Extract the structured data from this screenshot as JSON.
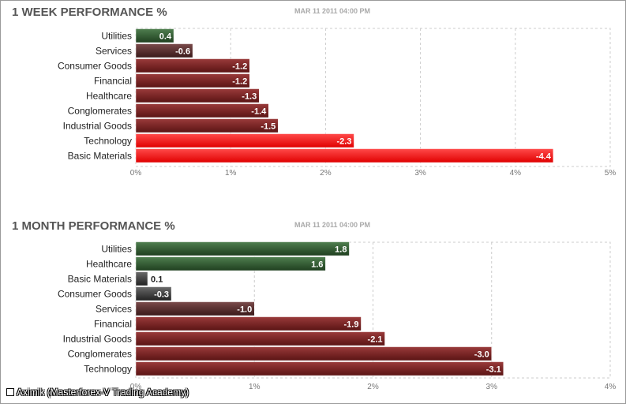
{
  "watermark": "Aximik (Masterforex-V Trading Academy)",
  "chart_data": [
    {
      "type": "bar",
      "orientation": "horizontal",
      "title": "1 WEEK PERFORMANCE %",
      "timestamp": "MAR 11 2011 04:00 PM",
      "categories": [
        "Utilities",
        "Services",
        "Consumer Goods",
        "Financial",
        "Healthcare",
        "Conglomerates",
        "Industrial Goods",
        "Technology",
        "Basic Materials"
      ],
      "values": [
        0.4,
        -0.6,
        -1.2,
        -1.2,
        -1.3,
        -1.4,
        -1.5,
        -2.3,
        -4.4
      ],
      "value_labels": [
        "0.4",
        "-0.6",
        "-1.2",
        "-1.2",
        "-1.3",
        "-1.4",
        "-1.5",
        "-2.3",
        "-4.4"
      ],
      "scale": "absolute value",
      "xlim": [
        0,
        5
      ],
      "ticks": [
        "0%",
        "1%",
        "2%",
        "3%",
        "4%",
        "5%"
      ],
      "grid": true,
      "colors": {
        "positive": "#2e5a2e",
        "negative_low": "#5a2a2a",
        "negative_mid": "#a01818",
        "negative_high": "#ff0000"
      }
    },
    {
      "type": "bar",
      "orientation": "horizontal",
      "title": "1 MONTH PERFORMANCE %",
      "timestamp": "MAR 11 2011 04:00 PM",
      "categories": [
        "Utilities",
        "Healthcare",
        "Basic Materials",
        "Consumer Goods",
        "Services",
        "Financial",
        "Industrial Goods",
        "Conglomerates",
        "Technology"
      ],
      "values": [
        1.8,
        1.6,
        0.1,
        -0.3,
        -1.0,
        -1.9,
        -2.1,
        -3.0,
        -3.1
      ],
      "value_labels": [
        "1.8",
        "1.6",
        "0.1",
        "-0.3",
        "-1.0",
        "-1.9",
        "-2.1",
        "-3.0",
        "-3.1"
      ],
      "scale": "absolute value",
      "xlim": [
        0,
        4
      ],
      "ticks": [
        "0%",
        "1%",
        "2%",
        "3%",
        "4%"
      ],
      "grid": true,
      "colors": {
        "positive": "#2e5a2e",
        "negative_low": "#3e2a2a",
        "negative_mid": "#6e2424"
      }
    }
  ]
}
